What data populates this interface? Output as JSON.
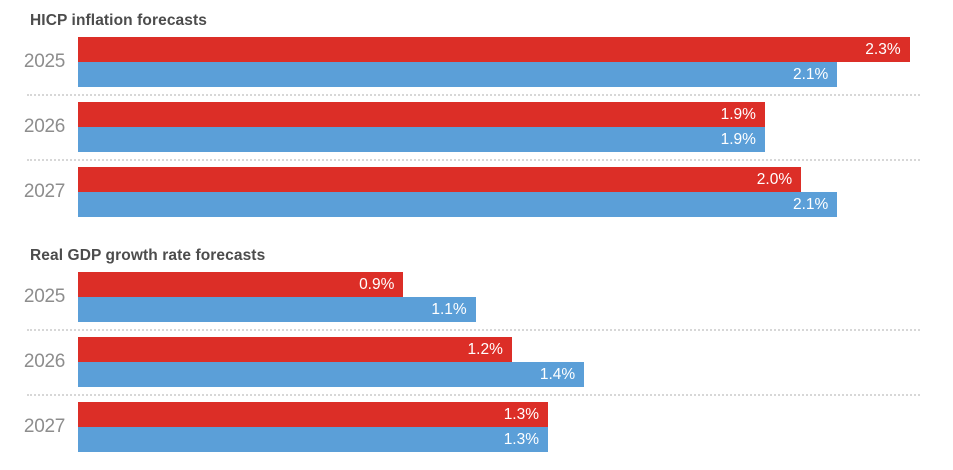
{
  "chart_data": [
    {
      "type": "bar",
      "orientation": "horizontal",
      "title": "HICP inflation forecasts",
      "categories": [
        "2025",
        "2026",
        "2027"
      ],
      "series": [
        {
          "name": "red",
          "color": "#dc2e27",
          "values": [
            2.3,
            1.9,
            2.0
          ],
          "labels": [
            "2.3%",
            "1.9%",
            "2.0%"
          ]
        },
        {
          "name": "blue",
          "color": "#5b9fd8",
          "values": [
            2.1,
            1.9,
            2.1
          ],
          "labels": [
            "2.1%",
            "1.9%",
            "2.1%"
          ]
        }
      ],
      "xlim": [
        0,
        2.42
      ],
      "grid": false,
      "legend": "none",
      "value_label_position": "inside-end"
    },
    {
      "type": "bar",
      "orientation": "horizontal",
      "title": "Real GDP growth rate forecasts",
      "categories": [
        "2025",
        "2026",
        "2027"
      ],
      "series": [
        {
          "name": "red",
          "color": "#dc2e27",
          "values": [
            0.9,
            1.2,
            1.3
          ],
          "labels": [
            "0.9%",
            "1.2%",
            "1.3%"
          ]
        },
        {
          "name": "blue",
          "color": "#5b9fd8",
          "values": [
            1.1,
            1.4,
            1.3
          ],
          "labels": [
            "1.1%",
            "1.4%",
            "1.3%"
          ]
        }
      ],
      "xlim": [
        0,
        2.42
      ],
      "grid": false,
      "legend": "none",
      "value_label_position": "inside-end"
    }
  ],
  "styles": {
    "red": "#dc2e27",
    "blue": "#5b9fd8",
    "title_color": "#4c4c4c",
    "category_color": "#8d8d8d",
    "separator_color": "#d7d7d7",
    "bar_label_color": "#ffffff",
    "background": "#ffffff"
  }
}
